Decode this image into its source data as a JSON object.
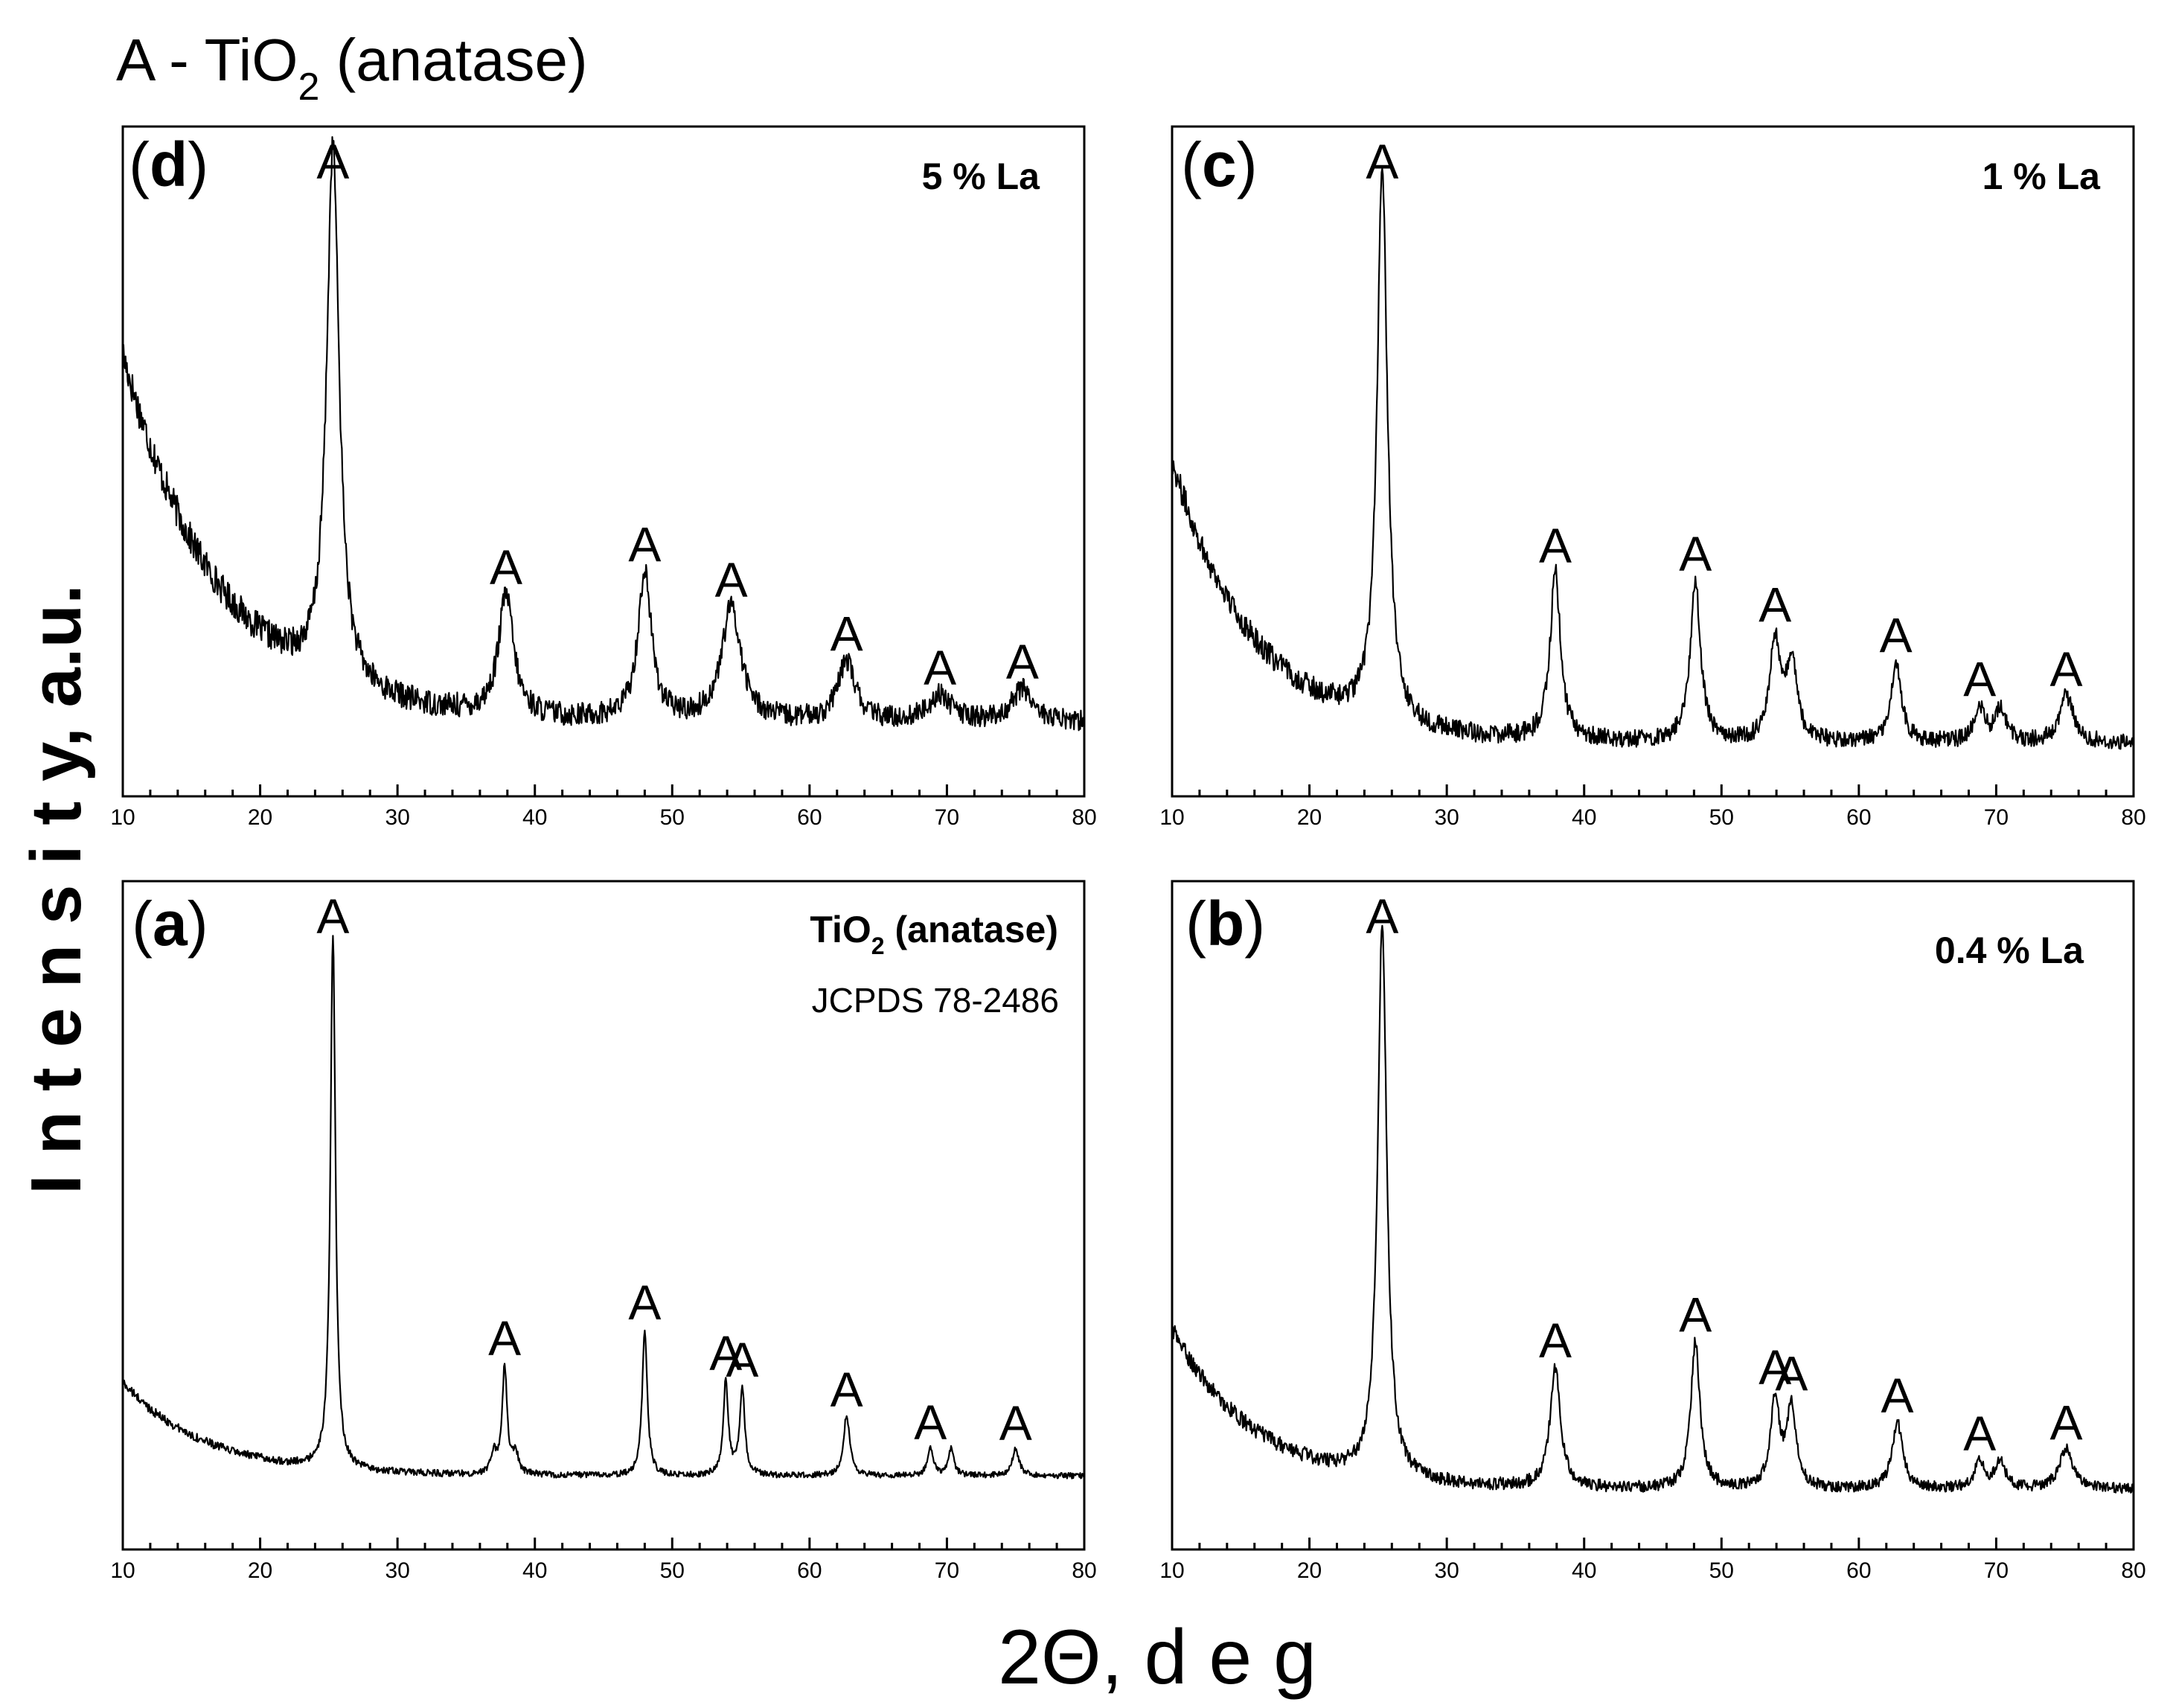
{
  "header": {
    "legend_title": "A - TiO",
    "legend_sub": "2",
    "legend_tail": " (anatase)"
  },
  "axes": {
    "x_title": "2Θ, d e g",
    "y_title": "I n t e n s i t y, a.u."
  },
  "chart_data": [
    {
      "type": "line",
      "panel": "d",
      "label_open": "(",
      "label_letter": "d",
      "label_close": ")",
      "sample_label": "5 % La",
      "xlabel": "2Θ, d e g",
      "ylabel": "I n t e n s i t y, a.u.",
      "xlim": [
        10,
        80
      ],
      "ylim": [
        0,
        100
      ],
      "xticks": [
        "10",
        "20",
        "30",
        "40",
        "50",
        "60",
        "70",
        "80"
      ],
      "background": {
        "base": 11,
        "amp": 55,
        "decay": 7
      },
      "noise": 2.6,
      "peaks": [
        {
          "x": 25.3,
          "height": 80,
          "width": 0.55,
          "label": "A"
        },
        {
          "x": 37.9,
          "height": 18,
          "width": 0.65,
          "label": "A"
        },
        {
          "x": 48.0,
          "height": 22,
          "width": 0.6,
          "label": "A"
        },
        {
          "x": 54.3,
          "height": 17,
          "width": 0.85,
          "label": "A"
        },
        {
          "x": 62.7,
          "height": 9,
          "width": 0.75,
          "label": "A"
        },
        {
          "x": 69.5,
          "height": 4,
          "width": 1.0,
          "label": "A"
        },
        {
          "x": 75.5,
          "height": 5,
          "width": 0.9,
          "label": "A"
        }
      ]
    },
    {
      "type": "line",
      "panel": "c",
      "label_open": "(",
      "label_letter": "c",
      "label_close": ")",
      "sample_label": "1 % La",
      "xlabel": "2Θ, d e g",
      "ylabel": "I n t e n s i t y, a.u.",
      "xlim": [
        10,
        80
      ],
      "ylim": [
        0,
        100
      ],
      "xticks": [
        "10",
        "20",
        "30",
        "40",
        "50",
        "60",
        "70",
        "80"
      ],
      "background": {
        "base": 8,
        "amp": 42,
        "decay": 6
      },
      "noise": 2.0,
      "peaks": [
        {
          "x": 25.3,
          "height": 83,
          "width": 0.45,
          "label": "A"
        },
        {
          "x": 37.9,
          "height": 25,
          "width": 0.45,
          "label": "A"
        },
        {
          "x": 48.1,
          "height": 24,
          "width": 0.45,
          "label": "A"
        },
        {
          "x": 53.9,
          "height": 15,
          "width": 0.45,
          "label": "A"
        },
        {
          "x": 55.1,
          "height": 12,
          "width": 0.45
        },
        {
          "x": 62.7,
          "height": 12,
          "width": 0.45,
          "label": "A"
        },
        {
          "x": 68.8,
          "height": 5,
          "width": 0.45,
          "label": "A"
        },
        {
          "x": 70.3,
          "height": 5,
          "width": 0.45
        },
        {
          "x": 75.1,
          "height": 7,
          "width": 0.6,
          "label": "A"
        }
      ]
    },
    {
      "type": "line",
      "panel": "a",
      "label_open": "(",
      "label_letter": "a",
      "label_close": ")",
      "sample_label": "TiO",
      "sample_label_sub": "2",
      "sample_label_tail": " (anatase)",
      "reference": "JCPDS 78-2486",
      "xlabel": "2Θ, d e g",
      "ylabel": "I n t e n s i t y, a.u.",
      "xlim": [
        10,
        80
      ],
      "ylim": [
        0,
        100
      ],
      "xticks": [
        "10",
        "20",
        "30",
        "40",
        "50",
        "60",
        "70",
        "80"
      ],
      "background": {
        "base": 11,
        "amp": 14,
        "decay": 6
      },
      "noise": 0.7,
      "peaks": [
        {
          "x": 25.3,
          "height": 80,
          "width": 0.22,
          "label": "A"
        },
        {
          "x": 37.0,
          "height": 3,
          "width": 0.25
        },
        {
          "x": 37.8,
          "height": 16,
          "width": 0.22,
          "label": "A"
        },
        {
          "x": 38.6,
          "height": 3,
          "width": 0.25
        },
        {
          "x": 48.0,
          "height": 22,
          "width": 0.22,
          "label": "A"
        },
        {
          "x": 53.9,
          "height": 14,
          "width": 0.22,
          "label": "A"
        },
        {
          "x": 55.1,
          "height": 13,
          "width": 0.22,
          "label": "A"
        },
        {
          "x": 62.7,
          "height": 9,
          "width": 0.28,
          "label": "A"
        },
        {
          "x": 68.8,
          "height": 4,
          "width": 0.25,
          "label": "A"
        },
        {
          "x": 70.3,
          "height": 4,
          "width": 0.25
        },
        {
          "x": 75.0,
          "height": 4,
          "width": 0.3,
          "label": "A"
        }
      ]
    },
    {
      "type": "line",
      "panel": "b",
      "label_open": "(",
      "label_letter": "b",
      "label_close": ")",
      "sample_label": "0.4 % La",
      "xlabel": "2Θ, d e g",
      "ylabel": "I n t e n s i t y, a.u.",
      "xlim": [
        10,
        80
      ],
      "ylim": [
        0,
        100
      ],
      "xticks": [
        "10",
        "20",
        "30",
        "40",
        "50",
        "60",
        "70",
        "80"
      ],
      "background": {
        "base": 9,
        "amp": 24,
        "decay": 6
      },
      "noise": 1.3,
      "peaks": [
        {
          "x": 25.3,
          "height": 83,
          "width": 0.4,
          "label": "A"
        },
        {
          "x": 37.9,
          "height": 18,
          "width": 0.45,
          "label": "A"
        },
        {
          "x": 48.1,
          "height": 22,
          "width": 0.4,
          "label": "A"
        },
        {
          "x": 53.9,
          "height": 13,
          "width": 0.4,
          "label": "A"
        },
        {
          "x": 55.1,
          "height": 12,
          "width": 0.4,
          "label": "A"
        },
        {
          "x": 62.8,
          "height": 10,
          "width": 0.45,
          "label": "A"
        },
        {
          "x": 68.8,
          "height": 4,
          "width": 0.45,
          "label": "A"
        },
        {
          "x": 70.3,
          "height": 4,
          "width": 0.45
        },
        {
          "x": 75.1,
          "height": 6,
          "width": 0.6,
          "label": "A"
        }
      ]
    }
  ]
}
